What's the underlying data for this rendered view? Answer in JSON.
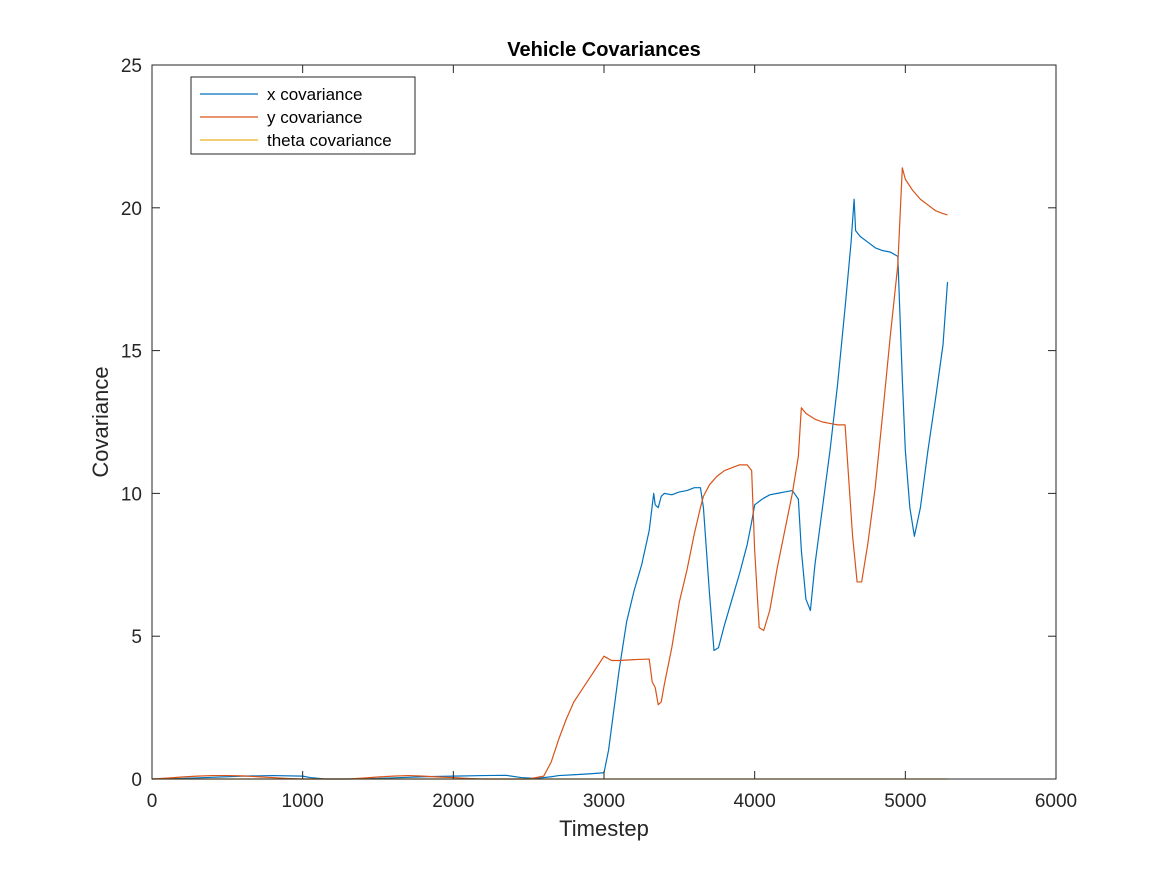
{
  "chart_data": {
    "type": "line",
    "title": "Vehicle Covariances",
    "xlabel": "Timestep",
    "ylabel": "Covariance",
    "xlim": [
      0,
      6000
    ],
    "ylim": [
      0,
      25
    ],
    "xticks": [
      0,
      1000,
      2000,
      3000,
      4000,
      5000,
      6000
    ],
    "yticks": [
      0,
      5,
      10,
      15,
      20,
      25
    ],
    "grid": false,
    "legend_position": "top-left",
    "series": [
      {
        "name": "x covariance",
        "color": "#0072BD",
        "x": [
          0,
          200,
          400,
          600,
          800,
          1000,
          1050,
          1150,
          1300,
          1500,
          1700,
          1800,
          2000,
          2200,
          2350,
          2450,
          2550,
          2650,
          2700,
          2800,
          2900,
          3000,
          3030,
          3060,
          3100,
          3150,
          3200,
          3250,
          3300,
          3330,
          3340,
          3360,
          3380,
          3400,
          3450,
          3500,
          3550,
          3600,
          3640,
          3660,
          3700,
          3730,
          3760,
          3800,
          3850,
          3900,
          3950,
          3980,
          4000,
          4050,
          4100,
          4150,
          4200,
          4250,
          4290,
          4310,
          4340,
          4370,
          4400,
          4450,
          4500,
          4550,
          4600,
          4640,
          4660,
          4670,
          4700,
          4750,
          4800,
          4850,
          4900,
          4950,
          4980,
          5000,
          5030,
          5060,
          5100,
          5150,
          5200,
          5250,
          5280
        ],
        "y": [
          0.0,
          0.02,
          0.06,
          0.1,
          0.12,
          0.1,
          0.05,
          0.0,
          0.0,
          0.02,
          0.06,
          0.08,
          0.1,
          0.12,
          0.13,
          0.05,
          0.02,
          0.08,
          0.12,
          0.15,
          0.18,
          0.22,
          1.0,
          2.2,
          3.8,
          5.5,
          6.6,
          7.5,
          8.7,
          10.0,
          9.6,
          9.5,
          9.9,
          10.0,
          9.95,
          10.05,
          10.1,
          10.2,
          10.2,
          9.5,
          6.5,
          4.5,
          4.6,
          5.4,
          6.3,
          7.2,
          8.2,
          9.0,
          9.6,
          9.8,
          9.95,
          10.0,
          10.05,
          10.1,
          9.8,
          8.0,
          6.3,
          5.9,
          7.5,
          9.5,
          11.5,
          13.8,
          16.5,
          18.8,
          20.3,
          19.2,
          19.0,
          18.8,
          18.6,
          18.5,
          18.45,
          18.3,
          14.0,
          11.5,
          9.5,
          8.5,
          9.5,
          11.5,
          13.3,
          15.2,
          17.4
        ]
      },
      {
        "name": "y covariance",
        "color": "#D95319",
        "x": [
          0,
          100,
          200,
          300,
          400,
          500,
          600,
          700,
          800,
          900,
          1000,
          1100,
          1200,
          1300,
          1400,
          1500,
          1600,
          1700,
          1800,
          1900,
          2000,
          2100,
          2200,
          2300,
          2400,
          2500,
          2600,
          2650,
          2700,
          2750,
          2800,
          2850,
          2900,
          2950,
          3000,
          3050,
          3100,
          3200,
          3300,
          3320,
          3340,
          3360,
          3380,
          3400,
          3450,
          3500,
          3550,
          3600,
          3640,
          3660,
          3700,
          3750,
          3800,
          3850,
          3900,
          3950,
          3980,
          4000,
          4030,
          4060,
          4100,
          4150,
          4200,
          4250,
          4290,
          4310,
          4340,
          4400,
          4450,
          4500,
          4550,
          4600,
          4650,
          4680,
          4710,
          4750,
          4800,
          4850,
          4900,
          4950,
          4980,
          5000,
          5050,
          5100,
          5150,
          5200,
          5250,
          5280
        ],
        "y": [
          0.0,
          0.03,
          0.07,
          0.1,
          0.12,
          0.12,
          0.11,
          0.08,
          0.05,
          0.02,
          0.0,
          0.0,
          0.0,
          0.0,
          0.03,
          0.07,
          0.1,
          0.12,
          0.1,
          0.07,
          0.05,
          0.02,
          0.0,
          0.0,
          0.0,
          0.0,
          0.1,
          0.6,
          1.4,
          2.1,
          2.7,
          3.1,
          3.5,
          3.9,
          4.3,
          4.15,
          4.15,
          4.18,
          4.2,
          3.4,
          3.2,
          2.6,
          2.7,
          3.3,
          4.6,
          6.2,
          7.3,
          8.6,
          9.5,
          9.9,
          10.3,
          10.6,
          10.8,
          10.9,
          11.0,
          11.0,
          10.8,
          8.0,
          5.3,
          5.2,
          5.9,
          7.4,
          8.7,
          10.0,
          11.3,
          13.0,
          12.8,
          12.6,
          12.5,
          12.45,
          12.4,
          12.4,
          8.5,
          6.9,
          6.9,
          8.2,
          10.2,
          12.8,
          15.5,
          18.0,
          21.4,
          21.0,
          20.6,
          20.3,
          20.1,
          19.9,
          19.8,
          19.75
        ]
      },
      {
        "name": "theta covariance",
        "color": "#EDB120",
        "x": [
          0,
          5280
        ],
        "y": [
          0.0,
          0.0
        ]
      }
    ]
  }
}
